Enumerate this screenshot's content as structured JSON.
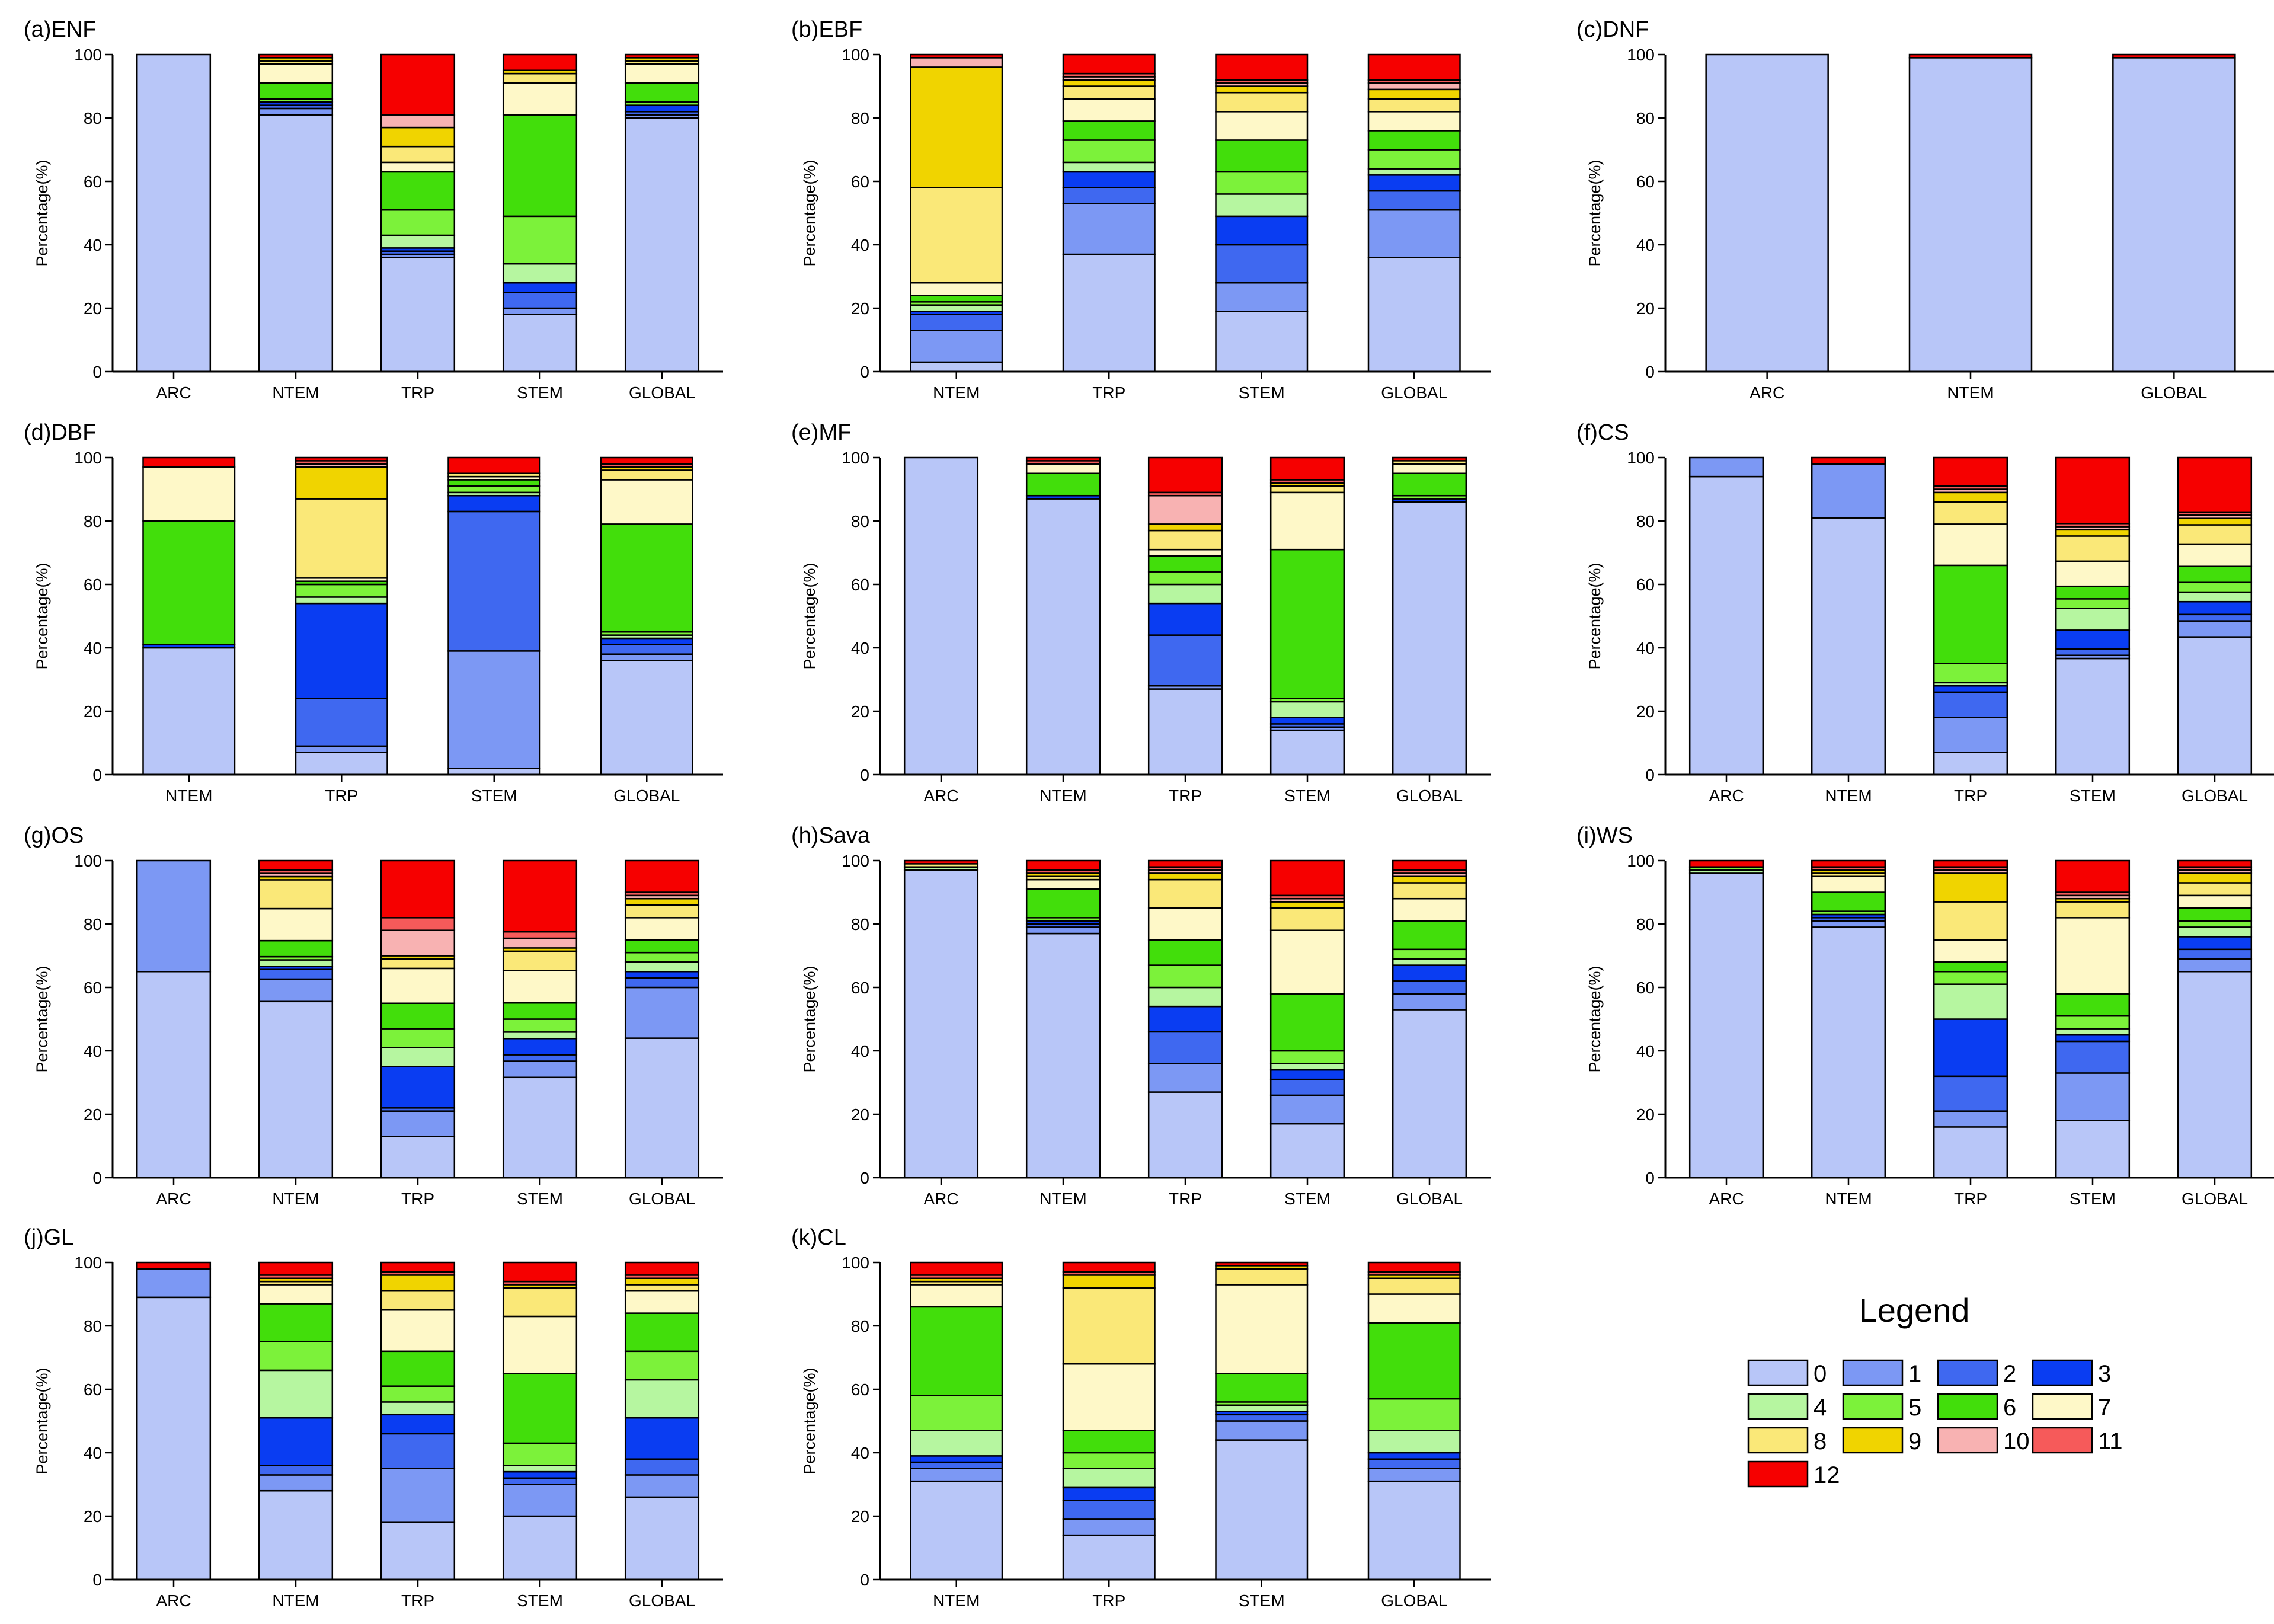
{
  "figure": {
    "y_axis_label": "Percentage(%)",
    "legend_title": "Legend"
  },
  "legend": {
    "title": "Legend",
    "items": [
      {
        "label": "0",
        "color": "#B8C6F8"
      },
      {
        "label": "1",
        "color": "#7C98F4"
      },
      {
        "label": "2",
        "color": "#3F68F0"
      },
      {
        "label": "3",
        "color": "#0A3DF2"
      },
      {
        "label": "4",
        "color": "#B6F6A0"
      },
      {
        "label": "5",
        "color": "#7CF23A"
      },
      {
        "label": "6",
        "color": "#42DE0B"
      },
      {
        "label": "7",
        "color": "#FEF8C8"
      },
      {
        "label": "8",
        "color": "#FAE878"
      },
      {
        "label": "9",
        "color": "#F0D400"
      },
      {
        "label": "10",
        "color": "#F8B2B2"
      },
      {
        "label": "11",
        "color": "#F65A5A"
      },
      {
        "label": "12",
        "color": "#F60000"
      }
    ]
  },
  "chart_data": [
    {
      "type": "bar",
      "stacked": true,
      "title": "(a)ENF",
      "ylabel": "Percentage(%)",
      "ylim": [
        0,
        100
      ],
      "yticks": [
        0,
        20,
        40,
        60,
        80,
        100
      ],
      "categories": [
        "ARC",
        "NTEM",
        "TRP",
        "STEM",
        "GLOBAL"
      ],
      "stacks": [
        [
          100,
          0,
          0,
          0,
          0,
          0,
          0,
          0,
          0,
          0,
          0,
          0,
          0
        ],
        [
          81,
          2,
          1,
          1,
          0,
          1,
          5,
          6,
          1,
          1,
          0,
          0,
          1
        ],
        [
          36,
          1,
          1,
          1,
          4,
          8,
          12,
          3,
          5,
          6,
          4,
          0,
          19
        ],
        [
          18,
          2,
          5,
          3,
          6,
          15,
          32,
          10,
          3,
          1,
          0,
          0,
          5
        ],
        [
          80,
          1,
          1,
          2,
          0,
          1,
          6,
          6,
          1,
          1,
          0,
          0,
          1
        ]
      ]
    },
    {
      "type": "bar",
      "stacked": true,
      "title": "(b)EBF",
      "ylabel": "Percentage(%)",
      "ylim": [
        0,
        100
      ],
      "yticks": [
        0,
        20,
        40,
        60,
        80,
        100
      ],
      "categories": [
        "NTEM",
        "TRP",
        "STEM",
        "GLOBAL"
      ],
      "stacks": [
        [
          3,
          10,
          5,
          1,
          2,
          1,
          2,
          4,
          30,
          38,
          3,
          0,
          1
        ],
        [
          37,
          16,
          5,
          5,
          3,
          7,
          6,
          7,
          4,
          2,
          1,
          1,
          6
        ],
        [
          19,
          9,
          12,
          9,
          7,
          7,
          10,
          9,
          6,
          2,
          1,
          1,
          8
        ],
        [
          36,
          15,
          6,
          5,
          2,
          6,
          6,
          6,
          4,
          3,
          2,
          1,
          8
        ]
      ]
    },
    {
      "type": "bar",
      "stacked": true,
      "title": "(c)DNF",
      "ylabel": "Percentage(%)",
      "ylim": [
        0,
        100
      ],
      "yticks": [
        0,
        20,
        40,
        60,
        80,
        100
      ],
      "categories": [
        "ARC",
        "NTEM",
        "GLOBAL"
      ],
      "stacks": [
        [
          100,
          0,
          0,
          0,
          0,
          0,
          0,
          0,
          0,
          0,
          0,
          0,
          0
        ],
        [
          99,
          0,
          0,
          0,
          0,
          0,
          0,
          0,
          0,
          0,
          0,
          0,
          1
        ],
        [
          99,
          0,
          0,
          0,
          0,
          0,
          0,
          0,
          0,
          0,
          0,
          0,
          1
        ]
      ]
    },
    {
      "type": "bar",
      "stacked": true,
      "title": "(d)DBF",
      "ylabel": "Percentage(%)",
      "ylim": [
        0,
        100
      ],
      "yticks": [
        0,
        20,
        40,
        60,
        80,
        100
      ],
      "categories": [
        "NTEM",
        "TRP",
        "STEM",
        "GLOBAL"
      ],
      "stacks": [
        [
          40,
          0,
          0,
          1,
          0,
          0,
          39,
          17,
          0,
          0,
          0,
          0,
          3
        ],
        [
          7,
          2,
          15,
          30,
          2,
          4,
          1,
          1,
          25,
          10,
          1,
          1,
          1
        ],
        [
          2,
          37,
          44,
          5,
          1,
          2,
          2,
          1,
          1,
          0,
          0,
          0,
          5
        ],
        [
          36,
          2,
          3,
          2,
          1,
          1,
          34,
          14,
          3,
          1,
          0,
          1,
          2
        ]
      ]
    },
    {
      "type": "bar",
      "stacked": true,
      "title": "(e)MF",
      "ylabel": "Percentage(%)",
      "ylim": [
        0,
        100
      ],
      "yticks": [
        0,
        20,
        40,
        60,
        80,
        100
      ],
      "categories": [
        "ARC",
        "NTEM",
        "TRP",
        "STEM",
        "GLOBAL"
      ],
      "stacks": [
        [
          100,
          0,
          0,
          0,
          0,
          0,
          0,
          0,
          0,
          0,
          0,
          0,
          0
        ],
        [
          87,
          0,
          0,
          1,
          0,
          0,
          7,
          3,
          0,
          0,
          0,
          1,
          1
        ],
        [
          27,
          1,
          16,
          10,
          6,
          4,
          5,
          2,
          6,
          2,
          9,
          1,
          11
        ],
        [
          14,
          1,
          1,
          2,
          5,
          1,
          47,
          18,
          2,
          1,
          0,
          1,
          7
        ],
        [
          86,
          0,
          0,
          1,
          0,
          1,
          7,
          3,
          1,
          0,
          0,
          0,
          1
        ]
      ]
    },
    {
      "type": "bar",
      "stacked": true,
      "title": "(f)CS",
      "ylabel": "Percentage(%)",
      "ylim": [
        0,
        100
      ],
      "yticks": [
        0,
        20,
        40,
        60,
        80,
        100
      ],
      "categories": [
        "ARC",
        "NTEM",
        "TRP",
        "STEM",
        "GLOBAL"
      ],
      "stacks": [
        [
          94,
          6,
          0,
          0,
          0,
          0,
          0,
          0,
          0,
          0,
          0,
          0,
          0
        ],
        [
          81,
          17,
          0,
          0,
          0,
          0,
          0,
          0,
          0,
          0,
          0,
          0,
          2
        ],
        [
          7,
          11,
          8,
          2,
          1,
          6,
          31,
          13,
          7,
          3,
          1,
          1,
          9
        ],
        [
          37,
          1,
          2,
          6,
          7,
          3,
          4,
          8,
          8,
          2,
          1,
          1,
          21
        ],
        [
          43,
          5,
          2,
          4,
          3,
          3,
          5,
          7,
          6,
          2,
          1,
          1,
          17
        ]
      ]
    },
    {
      "type": "bar",
      "stacked": true,
      "title": "(g)OS",
      "ylabel": "Percentage(%)",
      "ylim": [
        0,
        100
      ],
      "yticks": [
        0,
        20,
        40,
        60,
        80,
        100
      ],
      "categories": [
        "ARC",
        "NTEM",
        "TRP",
        "STEM",
        "GLOBAL"
      ],
      "stacks": [
        [
          65,
          35,
          0,
          0,
          0,
          0,
          0,
          0,
          0,
          0,
          0,
          0,
          0
        ],
        [
          55,
          7,
          3,
          1,
          2,
          1,
          5,
          10,
          9,
          1,
          1,
          1,
          3
        ],
        [
          13,
          8,
          1,
          13,
          6,
          6,
          8,
          11,
          3,
          1,
          8,
          4,
          18
        ],
        [
          31,
          5,
          2,
          5,
          2,
          4,
          5,
          10,
          6,
          1,
          3,
          2,
          22
        ],
        [
          44,
          16,
          3,
          2,
          3,
          3,
          4,
          7,
          4,
          2,
          1,
          1,
          10
        ]
      ]
    },
    {
      "type": "bar",
      "stacked": true,
      "title": "(h)Sava",
      "ylabel": "Percentage(%)",
      "ylim": [
        0,
        100
      ],
      "yticks": [
        0,
        20,
        40,
        60,
        80,
        100
      ],
      "categories": [
        "ARC",
        "NTEM",
        "TRP",
        "STEM",
        "GLOBAL"
      ],
      "stacks": [
        [
          97,
          0,
          0,
          0,
          1,
          0,
          0,
          0,
          1,
          0,
          0,
          0,
          1
        ],
        [
          77,
          2,
          1,
          1,
          0,
          1,
          9,
          3,
          1,
          1,
          0,
          1,
          3
        ],
        [
          27,
          9,
          10,
          8,
          6,
          7,
          8,
          10,
          9,
          2,
          1,
          1,
          2
        ],
        [
          17,
          9,
          5,
          3,
          2,
          4,
          18,
          20,
          7,
          2,
          1,
          1,
          11
        ],
        [
          53,
          5,
          4,
          5,
          2,
          3,
          9,
          7,
          5,
          2,
          1,
          1,
          3
        ]
      ]
    },
    {
      "type": "bar",
      "stacked": true,
      "title": "(i)WS",
      "ylabel": "Percentage(%)",
      "ylim": [
        0,
        100
      ],
      "yticks": [
        0,
        20,
        40,
        60,
        80,
        100
      ],
      "categories": [
        "ARC",
        "NTEM",
        "TRP",
        "STEM",
        "GLOBAL"
      ],
      "stacks": [
        [
          96,
          0,
          0,
          0,
          1,
          1,
          0,
          0,
          0,
          0,
          0,
          0,
          2
        ],
        [
          79,
          2,
          1,
          1,
          0,
          1,
          6,
          5,
          1,
          1,
          0,
          1,
          2
        ],
        [
          16,
          5,
          11,
          18,
          11,
          4,
          3,
          7,
          12,
          9,
          1,
          1,
          2
        ],
        [
          18,
          15,
          10,
          2,
          2,
          4,
          7,
          24,
          5,
          1,
          1,
          1,
          10
        ],
        [
          65,
          4,
          3,
          4,
          3,
          2,
          4,
          4,
          4,
          3,
          1,
          1,
          2
        ]
      ]
    },
    {
      "type": "bar",
      "stacked": true,
      "title": "(j)GL",
      "ylabel": "Percentage(%)",
      "ylim": [
        0,
        100
      ],
      "yticks": [
        0,
        20,
        40,
        60,
        80,
        100
      ],
      "categories": [
        "ARC",
        "NTEM",
        "TRP",
        "STEM",
        "GLOBAL"
      ],
      "stacks": [
        [
          89,
          9,
          0,
          0,
          0,
          0,
          0,
          0,
          0,
          0,
          0,
          0,
          2
        ],
        [
          28,
          5,
          3,
          15,
          15,
          9,
          12,
          6,
          1,
          1,
          0,
          1,
          4
        ],
        [
          18,
          17,
          11,
          6,
          4,
          5,
          11,
          13,
          6,
          5,
          0,
          1,
          3
        ],
        [
          20,
          10,
          2,
          2,
          2,
          7,
          22,
          18,
          9,
          1,
          0,
          1,
          6
        ],
        [
          26,
          7,
          5,
          13,
          12,
          9,
          12,
          7,
          2,
          2,
          0,
          1,
          4
        ]
      ]
    },
    {
      "type": "bar",
      "stacked": true,
      "title": "(k)CL",
      "ylabel": "Percentage(%)",
      "ylim": [
        0,
        100
      ],
      "yticks": [
        0,
        20,
        40,
        60,
        80,
        100
      ],
      "categories": [
        "NTEM",
        "TRP",
        "STEM",
        "GLOBAL"
      ],
      "stacks": [
        [
          31,
          4,
          2,
          2,
          8,
          11,
          28,
          7,
          1,
          1,
          0,
          1,
          4
        ],
        [
          14,
          5,
          6,
          4,
          6,
          5,
          7,
          21,
          24,
          4,
          0,
          1,
          3
        ],
        [
          44,
          6,
          2,
          1,
          2,
          1,
          9,
          28,
          5,
          1,
          0,
          0,
          1
        ],
        [
          31,
          4,
          3,
          2,
          7,
          10,
          24,
          9,
          5,
          1,
          0,
          1,
          3
        ]
      ]
    }
  ]
}
